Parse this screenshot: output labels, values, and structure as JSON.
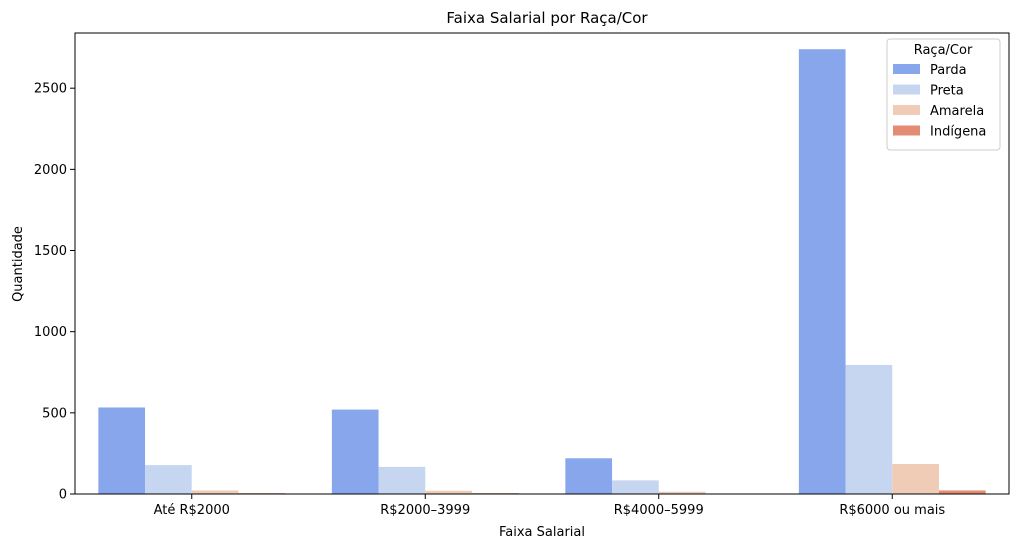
{
  "chart_data": {
    "type": "bar",
    "title": "Faixa Salarial por Raça/Cor",
    "xlabel": "Faixa Salarial",
    "ylabel": "Quantidade",
    "categories": [
      "Até R$2000",
      "R$2000–3999",
      "R$4000–5999",
      "R$6000 ou mais"
    ],
    "series": [
      {
        "name": "Parda",
        "color": "#88a6eb",
        "values": [
          533,
          520,
          220,
          2740
        ]
      },
      {
        "name": "Preta",
        "color": "#c6d6f0",
        "values": [
          178,
          167,
          84,
          795
        ]
      },
      {
        "name": "Amarela",
        "color": "#f0cbb6",
        "values": [
          22,
          20,
          14,
          185
        ]
      },
      {
        "name": "Indígena",
        "color": "#e48b74",
        "values": [
          5,
          5,
          2,
          22
        ]
      }
    ],
    "ylim": [
      0,
      2840
    ],
    "yticks": [
      0,
      500,
      1000,
      1500,
      2000,
      2500
    ],
    "grid": false,
    "legend": {
      "title": "Raça/Cor",
      "position": "top-right"
    }
  }
}
